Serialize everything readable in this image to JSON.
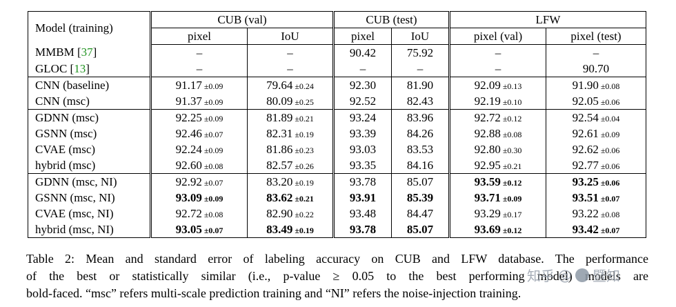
{
  "colors": {
    "citation": "#209320",
    "watermark_text": "#98a1ac",
    "watermark_avatar": "#8e99a6"
  },
  "table": {
    "model_header": "Model (training)",
    "col_groups": [
      {
        "label": "CUB (val)"
      },
      {
        "label": "CUB (test)"
      },
      {
        "label": "LFW"
      }
    ],
    "sub_headers": [
      "pixel",
      "IoU",
      "pixel",
      "IoU",
      "pixel (val)",
      "pixel (test)"
    ],
    "row_groups": [
      {
        "rows": [
          {
            "model": "MMBM",
            "cite": "37",
            "cells": [
              {
                "v": "–"
              },
              {
                "v": "–"
              },
              {
                "v": "90.42"
              },
              {
                "v": "75.92"
              },
              {
                "v": "–"
              },
              {
                "v": "–"
              }
            ]
          },
          {
            "model": "GLOC",
            "cite": "13",
            "cells": [
              {
                "v": "–"
              },
              {
                "v": "–"
              },
              {
                "v": "–"
              },
              {
                "v": "–"
              },
              {
                "v": "–"
              },
              {
                "v": "90.70"
              }
            ]
          }
        ]
      },
      {
        "rows": [
          {
            "model": "CNN (baseline)",
            "cells": [
              {
                "v": "91.17",
                "pm": "0.09"
              },
              {
                "v": "79.64",
                "pm": "0.24"
              },
              {
                "v": "92.30"
              },
              {
                "v": "81.90"
              },
              {
                "v": "92.09",
                "pm": "0.13"
              },
              {
                "v": "91.90",
                "pm": "0.08"
              }
            ]
          },
          {
            "model": "CNN (msc)",
            "cells": [
              {
                "v": "91.37",
                "pm": "0.09"
              },
              {
                "v": "80.09",
                "pm": "0.25"
              },
              {
                "v": "92.52"
              },
              {
                "v": "82.43"
              },
              {
                "v": "92.19",
                "pm": "0.10"
              },
              {
                "v": "92.05",
                "pm": "0.06"
              }
            ]
          }
        ]
      },
      {
        "rows": [
          {
            "model": "GDNN (msc)",
            "cells": [
              {
                "v": "92.25",
                "pm": "0.09"
              },
              {
                "v": "81.89",
                "pm": "0.21"
              },
              {
                "v": "93.24"
              },
              {
                "v": "83.96"
              },
              {
                "v": "92.72",
                "pm": "0.12"
              },
              {
                "v": "92.54",
                "pm": "0.04"
              }
            ]
          },
          {
            "model": "GSNN (msc)",
            "cells": [
              {
                "v": "92.46",
                "pm": "0.07"
              },
              {
                "v": "82.31",
                "pm": "0.19"
              },
              {
                "v": "93.39"
              },
              {
                "v": "84.26"
              },
              {
                "v": "92.88",
                "pm": "0.08"
              },
              {
                "v": "92.61",
                "pm": "0.09"
              }
            ]
          },
          {
            "model": "CVAE (msc)",
            "cells": [
              {
                "v": "92.24",
                "pm": "0.09"
              },
              {
                "v": "81.86",
                "pm": "0.23"
              },
              {
                "v": "93.03"
              },
              {
                "v": "83.53"
              },
              {
                "v": "92.80",
                "pm": "0.30"
              },
              {
                "v": "92.62",
                "pm": "0.06"
              }
            ]
          },
          {
            "model": "hybrid (msc)",
            "cells": [
              {
                "v": "92.60",
                "pm": "0.08"
              },
              {
                "v": "82.57",
                "pm": "0.26"
              },
              {
                "v": "93.35"
              },
              {
                "v": "84.16"
              },
              {
                "v": "92.95",
                "pm": "0.21"
              },
              {
                "v": "92.77",
                "pm": "0.06"
              }
            ]
          }
        ]
      },
      {
        "rows": [
          {
            "model": "GDNN (msc, NI)",
            "cells": [
              {
                "v": "92.92",
                "pm": "0.07"
              },
              {
                "v": "83.20",
                "pm": "0.19"
              },
              {
                "v": "93.78"
              },
              {
                "v": "85.07"
              },
              {
                "v": "93.59",
                "pm": "0.12",
                "bold": true
              },
              {
                "v": "93.25",
                "pm": "0.06",
                "bold": true
              }
            ]
          },
          {
            "model": "GSNN (msc, NI)",
            "cells": [
              {
                "v": "93.09",
                "pm": "0.09",
                "bold": true
              },
              {
                "v": "83.62",
                "pm": "0.21",
                "bold": true
              },
              {
                "v": "93.91",
                "bold": true
              },
              {
                "v": "85.39",
                "bold": true
              },
              {
                "v": "93.71",
                "pm": "0.09",
                "bold": true
              },
              {
                "v": "93.51",
                "pm": "0.07",
                "bold": true
              }
            ]
          },
          {
            "model": "CVAE (msc, NI)",
            "cells": [
              {
                "v": "92.72",
                "pm": "0.08"
              },
              {
                "v": "82.90",
                "pm": "0.22"
              },
              {
                "v": "93.48"
              },
              {
                "v": "84.47"
              },
              {
                "v": "93.29",
                "pm": "0.17"
              },
              {
                "v": "93.22",
                "pm": "0.08"
              }
            ]
          },
          {
            "model": "hybrid (msc, NI)",
            "cells": [
              {
                "v": "93.05",
                "pm": "0.07",
                "bold": true
              },
              {
                "v": "83.49",
                "pm": "0.19",
                "bold": true
              },
              {
                "v": "93.78",
                "bold": true
              },
              {
                "v": "85.07",
                "bold": true
              },
              {
                "v": "93.69",
                "pm": "0.12",
                "bold": true
              },
              {
                "v": "93.42",
                "pm": "0.07",
                "bold": true
              }
            ]
          }
        ]
      }
    ]
  },
  "caption": {
    "lines": [
      "Table 2: Mean and standard error of labeling accuracy on CUB and LFW database. The performance",
      "of the best or statistically similar (i.e., p-value ≥ 0.05 to the best performing model) models are",
      "bold-faced. “msc” refers multi-scale prediction training and “NI” refers the noise-injection training."
    ]
  },
  "watermark": {
    "site": "知乎",
    "at": "@",
    "name": "暨知"
  }
}
